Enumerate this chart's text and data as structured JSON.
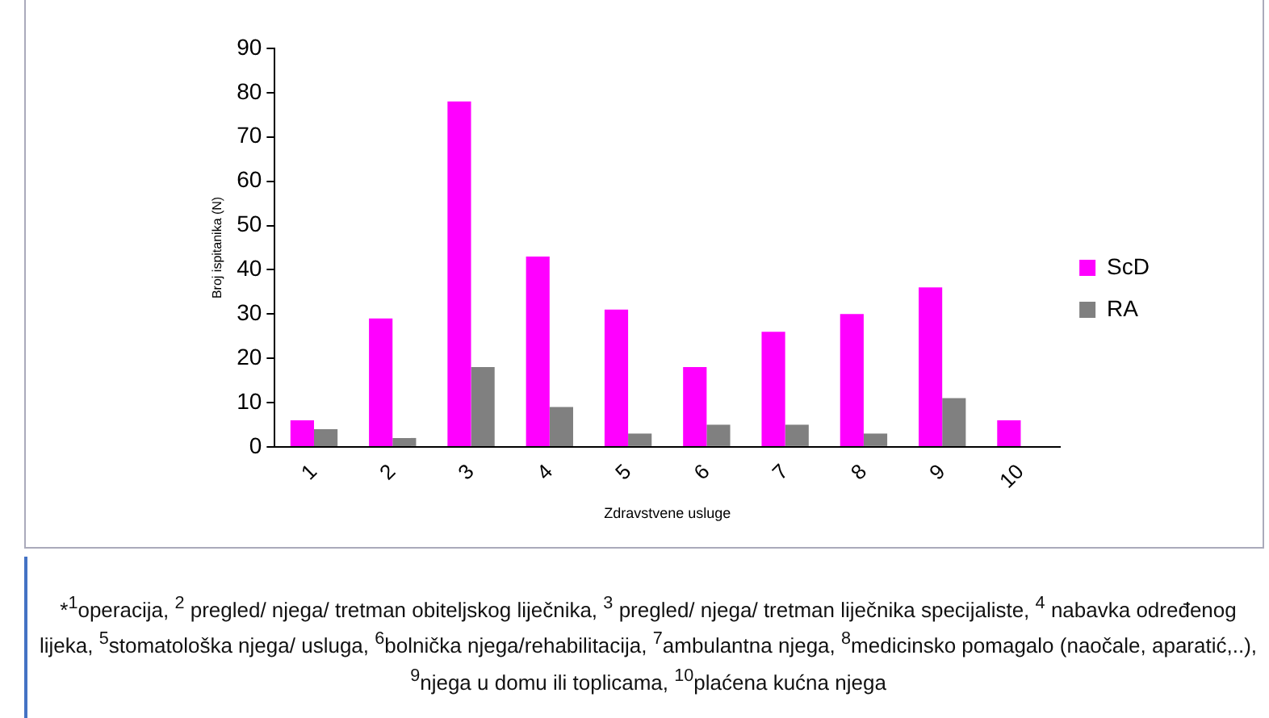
{
  "chart_data": {
    "type": "bar",
    "categories": [
      "1",
      "2",
      "3",
      "4",
      "5",
      "6",
      "7",
      "8",
      "9",
      "10"
    ],
    "series": [
      {
        "name": "ScD",
        "color": "#ff00ff",
        "values": [
          6,
          29,
          78,
          43,
          31,
          18,
          26,
          30,
          36,
          6
        ]
      },
      {
        "name": "RA",
        "color": "#808080",
        "values": [
          4,
          2,
          18,
          9,
          3,
          5,
          5,
          3,
          11,
          null
        ]
      }
    ],
    "xlabel": "Zdravstvene usluge",
    "ylabel": "Broj ispitanika (N)",
    "ylim": [
      0,
      90
    ],
    "yticks": [
      0,
      10,
      20,
      30,
      40,
      50,
      60,
      70,
      80,
      90
    ],
    "grid": false,
    "legend": "right",
    "annotations": [
      "*$^{1}$operacija, $^{2}$ pregled/ njega/ tretman obiteljskog liječnika, $^{3}$ pregled/ njega/ tretman liječnika specijaliste, $^{4}$ nabavka određenog lijeka, $^{5}$stomatološka njega/ usluga, $^{6}$bolnička njega/rehabilitacija, $^{7}$ambulantna njega, $^{8}$medicinsko pomagalo (naočale, aparatić,..), $^{9}$njega u domu ili toplicama, $^{10}$plaćena kućna njega"
    ]
  }
}
